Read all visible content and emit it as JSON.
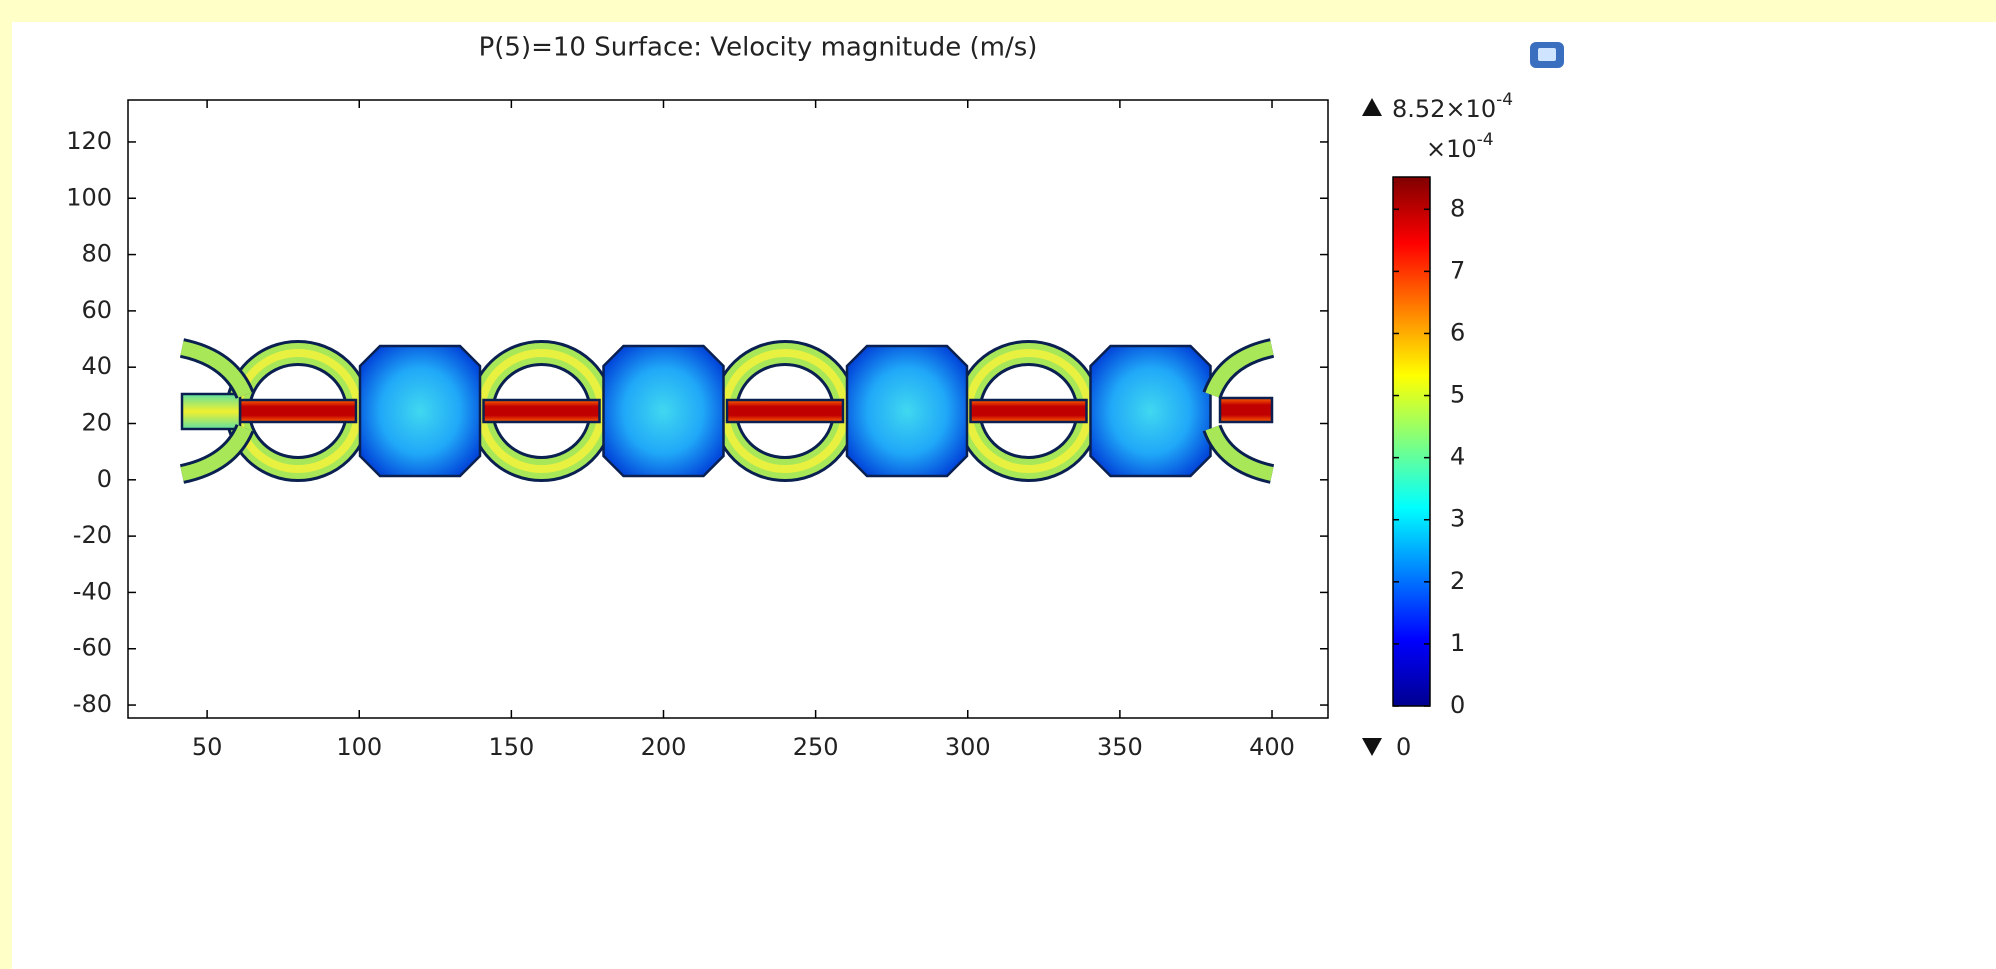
{
  "chart_data": {
    "type": "surface",
    "title": "P(5)=10   Surface: Velocity magnitude (m/s)",
    "xlim": [
      24,
      418.4
    ],
    "xticks": [
      50,
      100,
      150,
      200,
      250,
      300,
      350,
      400
    ],
    "ylim": [
      -84.6,
      134.9
    ],
    "yticks": [
      -80,
      -60,
      -40,
      -20,
      0,
      20,
      40,
      60,
      80,
      100,
      120
    ],
    "colorbar": {
      "clim": [
        0,
        8.52
      ],
      "ticks": [
        0,
        1,
        2,
        3,
        4,
        5,
        6,
        7,
        8
      ],
      "colormap": [
        "#00008f",
        "#0000ff",
        "#00ffff",
        "#ffff00",
        "#ff0000",
        "#800000"
      ],
      "scale_label": [
        "×10",
        "-4"
      ],
      "max_label": [
        "8.52×10",
        "-4"
      ],
      "min_label": 0
    }
  }
}
